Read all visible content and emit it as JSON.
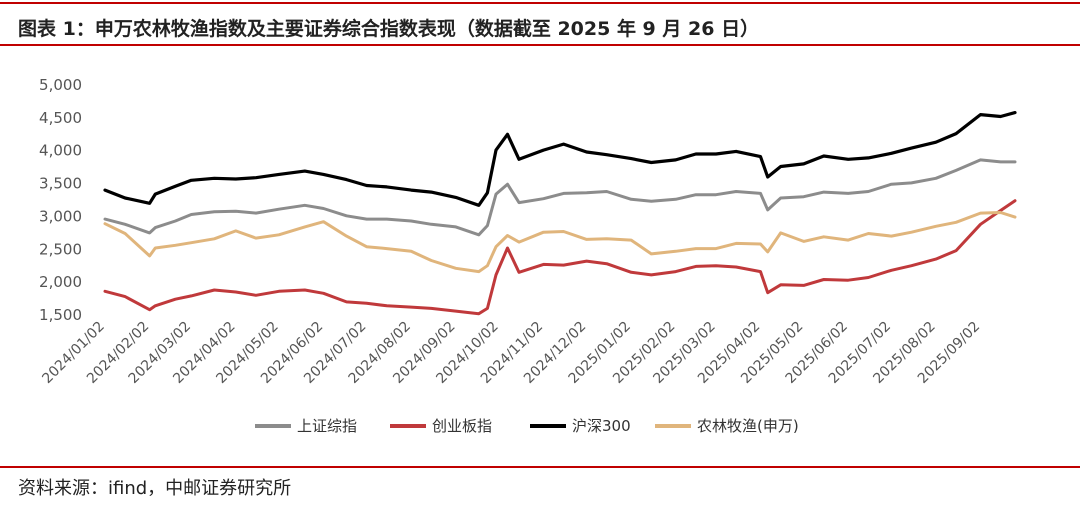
{
  "title": "图表 1：申万农林牧渔指数及主要证券综合指数表现（数据截至 2025 年 9 月 26 日）",
  "source": "资料来源：ifind，中邮证券研究所",
  "chart_data": {
    "type": "line",
    "title": "",
    "xlabel": "",
    "ylabel": "",
    "ylim": [
      1500,
      5000
    ],
    "y_ticks": [
      "5,000",
      "4,500",
      "4,000",
      "3,500",
      "3,000",
      "2,500",
      "2,000",
      "1,500"
    ],
    "y_tick_values": [
      5000,
      4500,
      4000,
      3500,
      3000,
      2500,
      2000,
      1500
    ],
    "x_ticks": [
      "2024/01/02",
      "2024/02/02",
      "2024/03/02",
      "2024/04/02",
      "2024/05/02",
      "2024/06/02",
      "2024/07/02",
      "2024/08/02",
      "2024/09/02",
      "2024/10/02",
      "2024/11/02",
      "2024/12/02",
      "2025/01/02",
      "2025/02/02",
      "2025/03/02",
      "2025/04/02",
      "2025/05/02",
      "2025/06/02",
      "2025/07/02",
      "2025/08/02",
      "2025/09/02"
    ],
    "x": [
      "2024/01/02",
      "2024/01/16",
      "2024/02/02",
      "2024/02/06",
      "2024/02/20",
      "2024/03/02",
      "2024/03/18",
      "2024/04/02",
      "2024/04/16",
      "2024/05/02",
      "2024/05/20",
      "2024/06/02",
      "2024/06/18",
      "2024/07/02",
      "2024/07/16",
      "2024/08/02",
      "2024/08/16",
      "2024/09/02",
      "2024/09/18",
      "2024/09/24",
      "2024/09/30",
      "2024/10/08",
      "2024/10/16",
      "2024/11/02",
      "2024/11/16",
      "2024/12/02",
      "2024/12/16",
      "2025/01/02",
      "2025/01/16",
      "2025/02/02",
      "2025/02/16",
      "2025/03/02",
      "2025/03/16",
      "2025/04/02",
      "2025/04/07",
      "2025/04/16",
      "2025/05/02",
      "2025/05/16",
      "2025/06/02",
      "2025/06/16",
      "2025/07/02",
      "2025/07/16",
      "2025/08/02",
      "2025/08/16",
      "2025/09/02",
      "2025/09/16",
      "2025/09/26"
    ],
    "series": [
      {
        "name": "上证综指",
        "color": "#8c8c8c",
        "values": [
          2960,
          2880,
          2750,
          2830,
          2930,
          3030,
          3070,
          3080,
          3050,
          3110,
          3170,
          3120,
          3010,
          2960,
          2960,
          2930,
          2880,
          2840,
          2720,
          2860,
          3340,
          3490,
          3210,
          3270,
          3350,
          3360,
          3380,
          3260,
          3230,
          3260,
          3330,
          3330,
          3380,
          3350,
          3100,
          3280,
          3300,
          3370,
          3350,
          3380,
          3490,
          3510,
          3580,
          3700,
          3860,
          3830,
          3830
        ]
      },
      {
        "name": "创业板指",
        "color": "#c0393b",
        "values": [
          1860,
          1780,
          1580,
          1640,
          1740,
          1790,
          1880,
          1850,
          1800,
          1860,
          1880,
          1830,
          1700,
          1680,
          1640,
          1620,
          1600,
          1560,
          1520,
          1600,
          2110,
          2520,
          2150,
          2270,
          2260,
          2320,
          2280,
          2150,
          2110,
          2160,
          2240,
          2250,
          2230,
          2160,
          1840,
          1960,
          1950,
          2040,
          2030,
          2070,
          2180,
          2250,
          2350,
          2480,
          2880,
          3090,
          3240
        ]
      },
      {
        "name": "沪深300",
        "color": "#000000",
        "values": [
          3400,
          3280,
          3200,
          3340,
          3460,
          3550,
          3580,
          3570,
          3590,
          3640,
          3690,
          3640,
          3560,
          3470,
          3450,
          3400,
          3370,
          3290,
          3170,
          3360,
          4010,
          4250,
          3870,
          4010,
          4100,
          3980,
          3940,
          3880,
          3820,
          3860,
          3950,
          3950,
          3990,
          3910,
          3600,
          3760,
          3800,
          3920,
          3870,
          3890,
          3960,
          4040,
          4130,
          4260,
          4550,
          4520,
          4580
        ]
      },
      {
        "name": "农林牧渔(申万)",
        "color": "#e0b57c",
        "values": [
          2890,
          2740,
          2400,
          2520,
          2560,
          2600,
          2660,
          2780,
          2670,
          2720,
          2840,
          2920,
          2700,
          2540,
          2510,
          2470,
          2330,
          2210,
          2160,
          2250,
          2540,
          2710,
          2610,
          2760,
          2770,
          2650,
          2660,
          2640,
          2430,
          2470,
          2510,
          2510,
          2590,
          2580,
          2460,
          2750,
          2620,
          2690,
          2640,
          2740,
          2700,
          2760,
          2850,
          2910,
          3050,
          3060,
          2990
        ]
      }
    ],
    "legend": "bottom",
    "grid": false
  }
}
